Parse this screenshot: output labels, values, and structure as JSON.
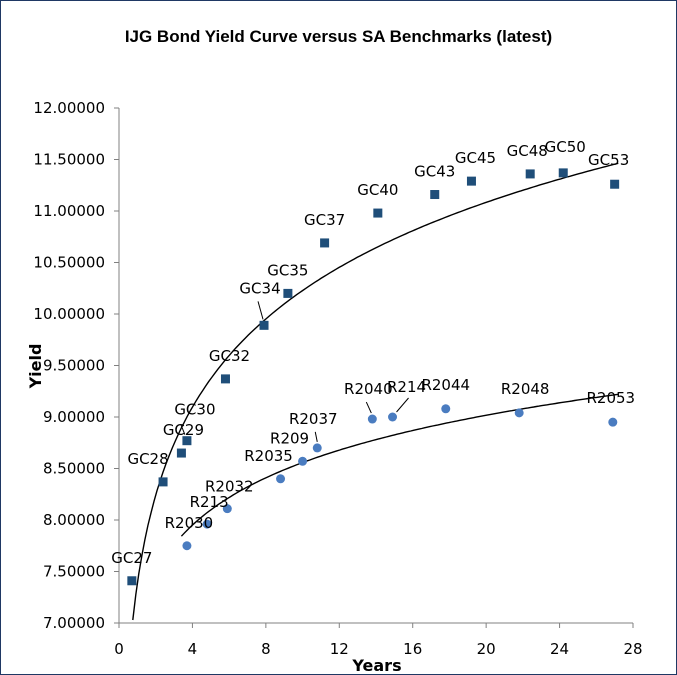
{
  "chart_data": {
    "type": "scatter",
    "title": "IJG Bond Yield Curve versus SA Benchmarks (latest)",
    "xlabel": "Years",
    "ylabel": "Yield",
    "xlim": [
      0,
      28
    ],
    "ylim": [
      7.0,
      12.0
    ],
    "xticks": [
      "0",
      "4",
      "8",
      "12",
      "16",
      "20",
      "24",
      "28"
    ],
    "yticks": [
      "7.00000",
      "7.50000",
      "8.00000",
      "8.50000",
      "9.00000",
      "9.50000",
      "10.00000",
      "10.50000",
      "11.00000",
      "11.50000",
      "12.00000"
    ],
    "grid": false,
    "series": [
      {
        "name": "",
        "marker": "square",
        "color": "#1f4e79",
        "points": [
          {
            "label": "GC27",
            "x": 0.7,
            "y": 7.41
          },
          {
            "label": "GC28",
            "x": 2.4,
            "y": 8.37
          },
          {
            "label": "GC29",
            "x": 3.4,
            "y": 8.65
          },
          {
            "label": "GC30",
            "x": 3.7,
            "y": 8.77
          },
          {
            "label": "GC32",
            "x": 5.8,
            "y": 9.37
          },
          {
            "label": "GC34",
            "x": 7.9,
            "y": 9.89
          },
          {
            "label": "GC35",
            "x": 9.2,
            "y": 10.2
          },
          {
            "label": "GC37",
            "x": 11.2,
            "y": 10.69
          },
          {
            "label": "GC40",
            "x": 14.1,
            "y": 10.98
          },
          {
            "label": "GC43",
            "x": 17.2,
            "y": 11.16
          },
          {
            "label": "GC45",
            "x": 19.2,
            "y": 11.29
          },
          {
            "label": "GC48",
            "x": 22.4,
            "y": 11.36
          },
          {
            "label": "GC50",
            "x": 24.2,
            "y": 11.37
          },
          {
            "label": "GC53",
            "x": 27.0,
            "y": 11.26
          }
        ]
      },
      {
        "name": "",
        "marker": "circle",
        "color": "#4a7cc0",
        "points": [
          {
            "label": "R2030",
            "x": 3.7,
            "y": 7.75
          },
          {
            "label": "R213",
            "x": 4.8,
            "y": 7.96
          },
          {
            "label": "R2032",
            "x": 5.9,
            "y": 8.11
          },
          {
            "label": "R2035",
            "x": 8.8,
            "y": 8.4
          },
          {
            "label": "R209",
            "x": 10.0,
            "y": 8.57
          },
          {
            "label": "R2037",
            "x": 10.8,
            "y": 8.7
          },
          {
            "label": "R2040",
            "x": 13.8,
            "y": 8.98
          },
          {
            "label": "R214",
            "x": 14.9,
            "y": 9.0
          },
          {
            "label": "R2044",
            "x": 17.8,
            "y": 9.08
          },
          {
            "label": "R2048",
            "x": 21.8,
            "y": 9.04
          },
          {
            "label": "R2053",
            "x": 26.9,
            "y": 8.95
          }
        ]
      }
    ],
    "trendlines": [
      {
        "type": "logarithmic",
        "a": 7.384,
        "b": 1.235,
        "x_range": [
          0.75,
          27.2
        ]
      },
      {
        "type": "logarithmic",
        "a": 7.032,
        "b": 0.6625,
        "x_range": [
          3.4,
          27.2
        ]
      }
    ]
  }
}
